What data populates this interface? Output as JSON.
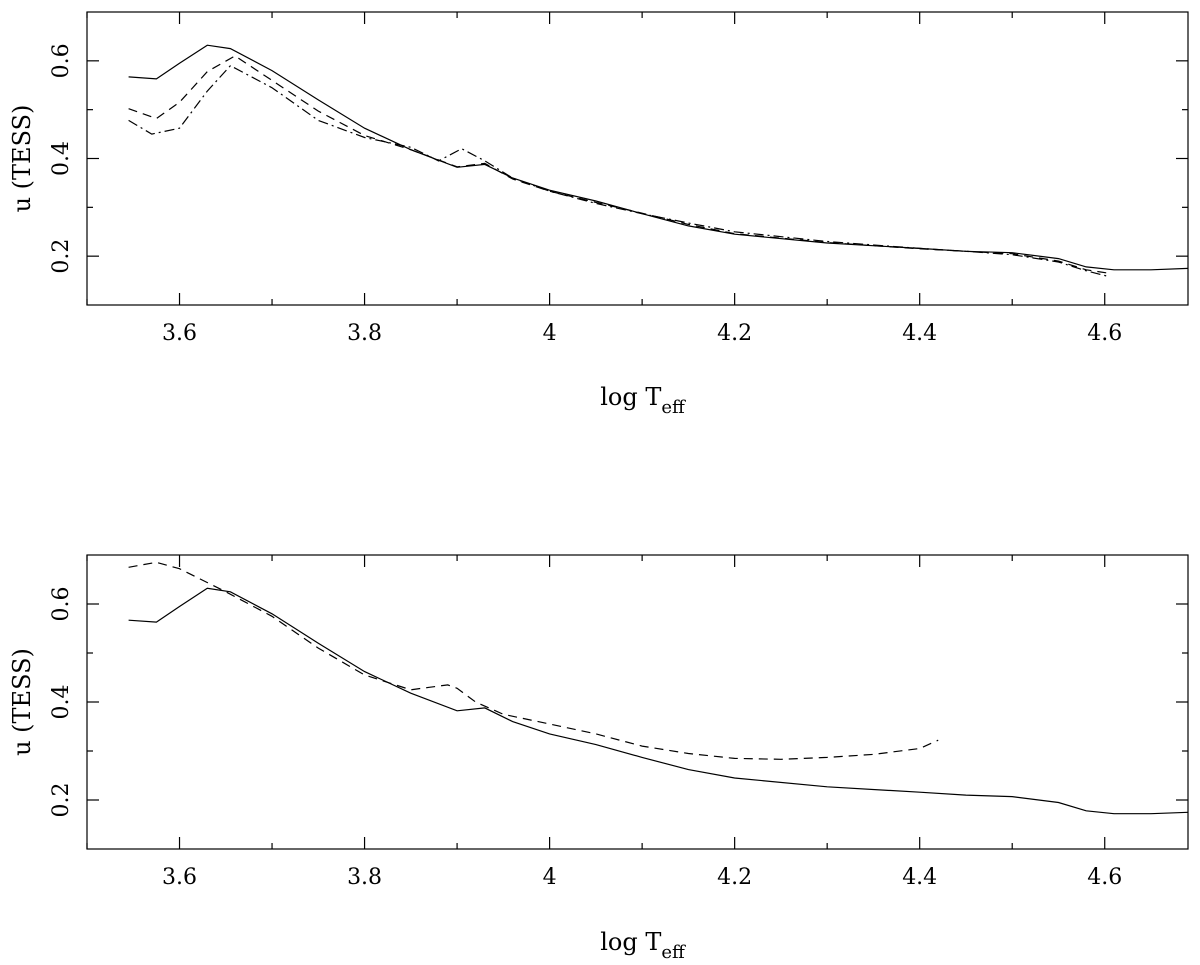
{
  "chart_data": [
    {
      "type": "line",
      "panel": "top",
      "xlabel": "log T",
      "xlabel_sub": "eff",
      "ylabel": "u (TESS)",
      "xlim": [
        3.5,
        4.69
      ],
      "ylim": [
        0.1,
        0.7
      ],
      "xticks": [
        3.6,
        3.8,
        4,
        4.2,
        4.4,
        4.6
      ],
      "xtick_labels": [
        "3.6",
        "3.8",
        "4",
        "4.2",
        "4.4",
        "4.6"
      ],
      "yticks": [
        0.2,
        0.4,
        0.6
      ],
      "ytick_labels": [
        "0.2",
        "0.4",
        "0.6"
      ],
      "grid": false,
      "series": [
        {
          "style": "solid",
          "x": [
            3.545,
            3.575,
            3.6,
            3.63,
            3.655,
            3.7,
            3.75,
            3.8,
            3.85,
            3.9,
            3.93,
            3.96,
            4.0,
            4.05,
            4.1,
            4.15,
            4.2,
            4.3,
            4.4,
            4.45,
            4.5,
            4.55,
            4.58,
            4.61,
            4.65,
            4.69
          ],
          "y": [
            0.567,
            0.563,
            0.595,
            0.632,
            0.625,
            0.58,
            0.52,
            0.462,
            0.418,
            0.382,
            0.388,
            0.36,
            0.335,
            0.313,
            0.287,
            0.262,
            0.245,
            0.227,
            0.216,
            0.21,
            0.207,
            0.195,
            0.178,
            0.172,
            0.172,
            0.175
          ]
        },
        {
          "style": "dashed",
          "x": [
            3.545,
            3.575,
            3.6,
            3.63,
            3.66,
            3.7,
            3.75,
            3.8,
            3.85,
            3.9,
            3.93,
            3.96,
            4.0,
            4.05,
            4.1,
            4.15,
            4.2,
            4.3,
            4.4,
            4.45,
            4.5,
            4.55,
            4.58,
            4.605
          ],
          "y": [
            0.502,
            0.482,
            0.515,
            0.578,
            0.61,
            0.56,
            0.497,
            0.447,
            0.418,
            0.383,
            0.39,
            0.358,
            0.333,
            0.31,
            0.288,
            0.265,
            0.246,
            0.228,
            0.215,
            0.21,
            0.205,
            0.19,
            0.172,
            0.165
          ]
        },
        {
          "style": "dash-dot",
          "x": [
            3.545,
            3.57,
            3.6,
            3.63,
            3.655,
            3.7,
            3.75,
            3.8,
            3.85,
            3.88,
            3.905,
            3.93,
            3.96,
            4.0,
            4.05,
            4.1,
            4.15,
            4.2,
            4.3,
            4.4,
            4.45,
            4.5,
            4.55,
            4.58,
            4.605
          ],
          "y": [
            0.478,
            0.45,
            0.462,
            0.538,
            0.59,
            0.545,
            0.478,
            0.443,
            0.423,
            0.395,
            0.42,
            0.395,
            0.36,
            0.333,
            0.308,
            0.287,
            0.268,
            0.25,
            0.23,
            0.216,
            0.21,
            0.203,
            0.188,
            0.17,
            0.158
          ]
        }
      ]
    },
    {
      "type": "line",
      "panel": "bottom",
      "xlabel": "log T",
      "xlabel_sub": "eff",
      "ylabel": "u (TESS)",
      "xlim": [
        3.5,
        4.69
      ],
      "ylim": [
        0.1,
        0.7
      ],
      "xticks": [
        3.6,
        3.8,
        4,
        4.2,
        4.4,
        4.6
      ],
      "xtick_labels": [
        "3.6",
        "3.8",
        "4",
        "4.2",
        "4.4",
        "4.6"
      ],
      "yticks": [
        0.2,
        0.4,
        0.6
      ],
      "ytick_labels": [
        "0.2",
        "0.4",
        "0.6"
      ],
      "grid": false,
      "series": [
        {
          "style": "solid",
          "x": [
            3.545,
            3.575,
            3.6,
            3.63,
            3.655,
            3.7,
            3.75,
            3.8,
            3.85,
            3.9,
            3.93,
            3.96,
            4.0,
            4.05,
            4.1,
            4.15,
            4.2,
            4.3,
            4.4,
            4.45,
            4.5,
            4.55,
            4.58,
            4.61,
            4.65,
            4.69
          ],
          "y": [
            0.567,
            0.563,
            0.595,
            0.632,
            0.625,
            0.58,
            0.52,
            0.462,
            0.418,
            0.382,
            0.388,
            0.36,
            0.335,
            0.313,
            0.287,
            0.262,
            0.245,
            0.227,
            0.216,
            0.21,
            0.207,
            0.195,
            0.178,
            0.172,
            0.172,
            0.175
          ]
        },
        {
          "style": "dashed",
          "x": [
            3.545,
            3.575,
            3.6,
            3.65,
            3.7,
            3.75,
            3.8,
            3.85,
            3.87,
            3.89,
            3.9,
            3.92,
            3.95,
            4.0,
            4.05,
            4.1,
            4.15,
            4.2,
            4.25,
            4.3,
            4.35,
            4.4,
            4.42
          ],
          "y": [
            0.675,
            0.685,
            0.672,
            0.625,
            0.575,
            0.51,
            0.455,
            0.425,
            0.43,
            0.435,
            0.428,
            0.4,
            0.375,
            0.355,
            0.335,
            0.31,
            0.295,
            0.285,
            0.283,
            0.287,
            0.293,
            0.305,
            0.322
          ]
        }
      ]
    }
  ]
}
